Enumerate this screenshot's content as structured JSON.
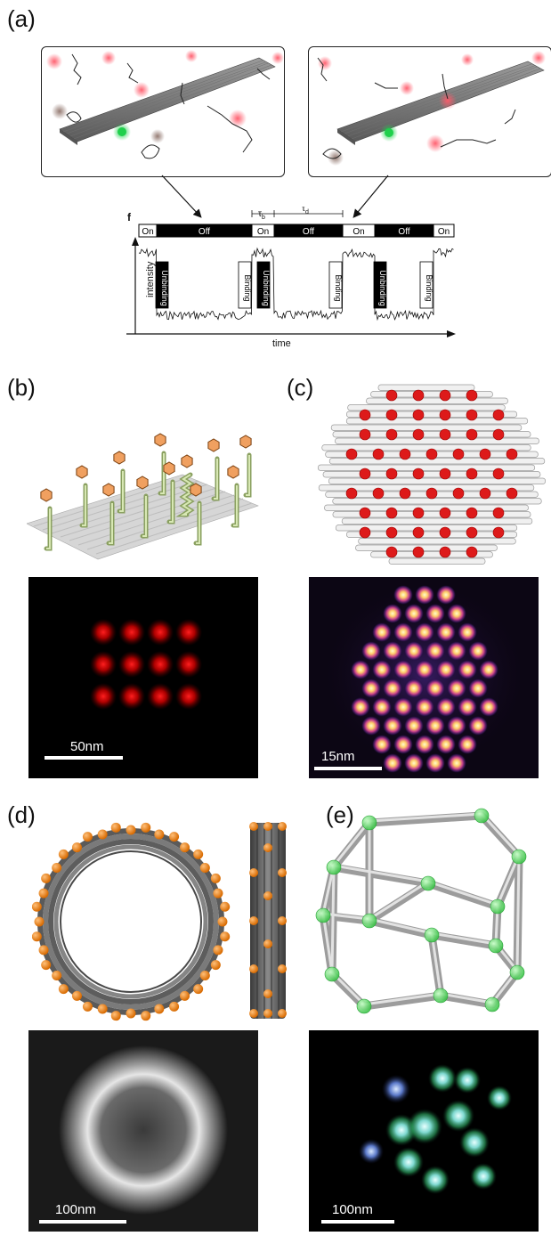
{
  "panels": {
    "a": {
      "label": "(a)",
      "trace": {
        "panel_letter": "f",
        "states": [
          "On",
          "Off",
          "On",
          "Off",
          "On",
          "Off",
          "On"
        ],
        "events": [
          "Unbinding",
          "Binding",
          "Unbinding",
          "Binding",
          "Unbinding",
          "Binding"
        ],
        "tau_b": "τ",
        "tau_b_sub": "b",
        "tau_d": "τ",
        "tau_d_sub": "d",
        "ylabel": "intensity",
        "xlabel": "time"
      }
    },
    "b": {
      "label": "(b)",
      "scalebar": "50nm"
    },
    "c": {
      "label": "(c)",
      "scalebar": "15nm"
    },
    "d": {
      "label": "(d)",
      "scalebar": "100nm"
    },
    "e": {
      "label": "(e)",
      "scalebar": "100nm"
    }
  },
  "colors": {
    "origami": "#808080",
    "green_dye": "#1fc84a",
    "red_dye": "#ff6070",
    "orange_marker": "#f08a24",
    "dna_strand": "#b7c98a",
    "state_black": "#000000"
  }
}
